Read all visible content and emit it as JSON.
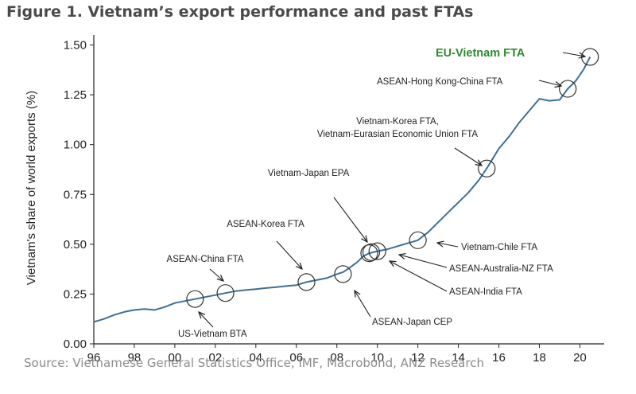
{
  "figure": {
    "title": "Figure 1. Vietnam’s export performance and past FTAs",
    "source": "Source: Vietnamese General Statistics Office, IMF, Macrobond, ANZ Research"
  },
  "colors": {
    "line": "#3f6f96",
    "highlight": "#2e8b2e",
    "axis": "#222222",
    "grid": "#dddddd"
  },
  "chart_data": {
    "type": "line",
    "title": "",
    "xlabel": "",
    "ylabel": "Vietnam's share of world exports (%)",
    "xlim": [
      1996,
      2021.2
    ],
    "ylim": [
      0,
      1.55
    ],
    "grid": false,
    "x_ticks": [
      {
        "value": 1996,
        "label": "96"
      },
      {
        "value": 1998,
        "label": "98"
      },
      {
        "value": 2000,
        "label": "00"
      },
      {
        "value": 2002,
        "label": "02"
      },
      {
        "value": 2004,
        "label": "04"
      },
      {
        "value": 2006,
        "label": "06"
      },
      {
        "value": 2008,
        "label": "08"
      },
      {
        "value": 2010,
        "label": "10"
      },
      {
        "value": 2012,
        "label": "12"
      },
      {
        "value": 2014,
        "label": "14"
      },
      {
        "value": 2016,
        "label": "16"
      },
      {
        "value": 2018,
        "label": "18"
      },
      {
        "value": 2020,
        "label": "20"
      }
    ],
    "y_ticks": [
      {
        "value": 0,
        "label": "0.00"
      },
      {
        "value": 0.25,
        "label": "0.25"
      },
      {
        "value": 0.5,
        "label": "0.50"
      },
      {
        "value": 0.75,
        "label": "0.75"
      },
      {
        "value": 1.0,
        "label": "1.00"
      },
      {
        "value": 1.25,
        "label": "1.25"
      },
      {
        "value": 1.5,
        "label": "1.50"
      }
    ],
    "series": [
      {
        "x": [
          1996.0,
          1996.5,
          1997.0,
          1997.5,
          1998.0,
          1998.5,
          1999.0,
          1999.5,
          2000.0,
          2000.5,
          2001.0,
          2001.5,
          2002.0,
          2002.5,
          2003.0,
          2003.5,
          2004.0,
          2004.5,
          2005.0,
          2005.5,
          2006.0,
          2006.5,
          2007.0,
          2007.5,
          2008.0,
          2008.3,
          2008.6,
          2009.0,
          2009.3,
          2009.6,
          2010.0,
          2010.5,
          2011.0,
          2011.5,
          2012.0,
          2012.5,
          2013.0,
          2013.5,
          2014.0,
          2014.5,
          2015.0,
          2015.4,
          2016.0,
          2016.5,
          2017.0,
          2017.5,
          2018.0,
          2018.5,
          2019.0,
          2019.4,
          2019.8,
          2020.2,
          2020.5
        ],
        "values": [
          0.11,
          0.125,
          0.145,
          0.16,
          0.17,
          0.175,
          0.17,
          0.185,
          0.205,
          0.215,
          0.225,
          0.235,
          0.245,
          0.255,
          0.265,
          0.27,
          0.275,
          0.28,
          0.285,
          0.29,
          0.295,
          0.31,
          0.32,
          0.33,
          0.35,
          0.36,
          0.38,
          0.41,
          0.44,
          0.455,
          0.465,
          0.475,
          0.49,
          0.505,
          0.52,
          0.56,
          0.61,
          0.66,
          0.71,
          0.76,
          0.82,
          0.88,
          0.98,
          1.04,
          1.11,
          1.17,
          1.23,
          1.22,
          1.225,
          1.28,
          1.32,
          1.38,
          1.44
        ]
      }
    ],
    "annotations": [
      {
        "text": "EU-Vietnam FTA",
        "x": 2020.5,
        "y": 1.44,
        "highlight": true
      },
      {
        "text": "ASEAN-Hong Kong-China FTA",
        "x": 2019.4,
        "y": 1.28
      },
      {
        "text": "Vietnam-Korea FTA,",
        "x": 2015.4,
        "y": 0.88
      },
      {
        "text": "Vietnam-Eurasian Economic Union FTA",
        "x": 2015.4,
        "y": 0.88
      },
      {
        "text": "Vietnam-Japan EPA",
        "x": 2009.6,
        "y": 0.455
      },
      {
        "text": "ASEAN-Korea FTA",
        "x": 2006.5,
        "y": 0.31
      },
      {
        "text": "Vietnam-Chile FTA",
        "x": 2012.0,
        "y": 0.52
      },
      {
        "text": "ASEAN-Australia-NZ FTA",
        "x": 2010.0,
        "y": 0.465
      },
      {
        "text": "ASEAN-China FTA",
        "x": 2002.5,
        "y": 0.255
      },
      {
        "text": "ASEAN-India FTA",
        "x": 2009.7,
        "y": 0.46
      },
      {
        "text": "ASEAN-Japan CEP",
        "x": 2008.3,
        "y": 0.35
      },
      {
        "text": "US-Vietnam BTA",
        "x": 2001.0,
        "y": 0.225
      }
    ]
  }
}
